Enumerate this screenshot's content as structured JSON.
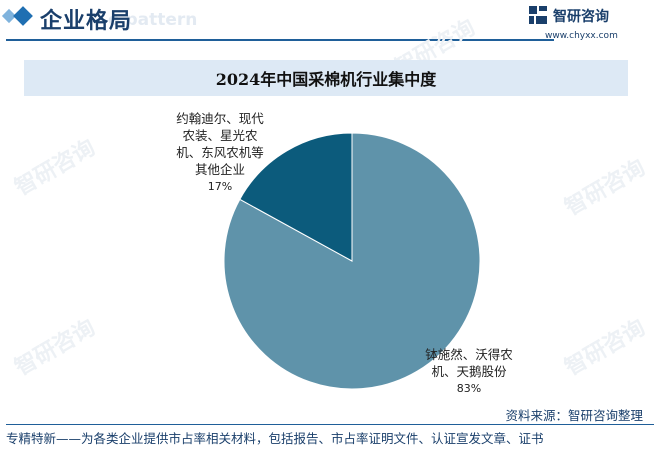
{
  "header": {
    "title": "企业格局",
    "watermark_text": "e pattern",
    "brand_name": "智研咨询",
    "brand_url": "www.chyxx.com"
  },
  "watermark": {
    "text": "智研咨询"
  },
  "chart_data": {
    "type": "pie",
    "title": "2024年中国采棉机行业集中度",
    "slices": [
      {
        "label_lines": [
          "钵施然、沃得农",
          "机、天鹅股份"
        ],
        "value": 83,
        "value_label": "83%",
        "color": "#5f93aa"
      },
      {
        "label_lines": [
          "约翰迪尔、现代",
          "农装、星光农",
          "机、东风农机等",
          "其他企业"
        ],
        "value": 17,
        "value_label": "17%",
        "color": "#0c5b7c"
      }
    ],
    "start_angle_deg": 0,
    "direction": "clockwise"
  },
  "footer": {
    "source": "资料来源：智研咨询整理",
    "tagline": "专精特新——为各类企业提供市占率相关材料，包括报告、市占率证明文件、认证宣发文章、证书"
  }
}
